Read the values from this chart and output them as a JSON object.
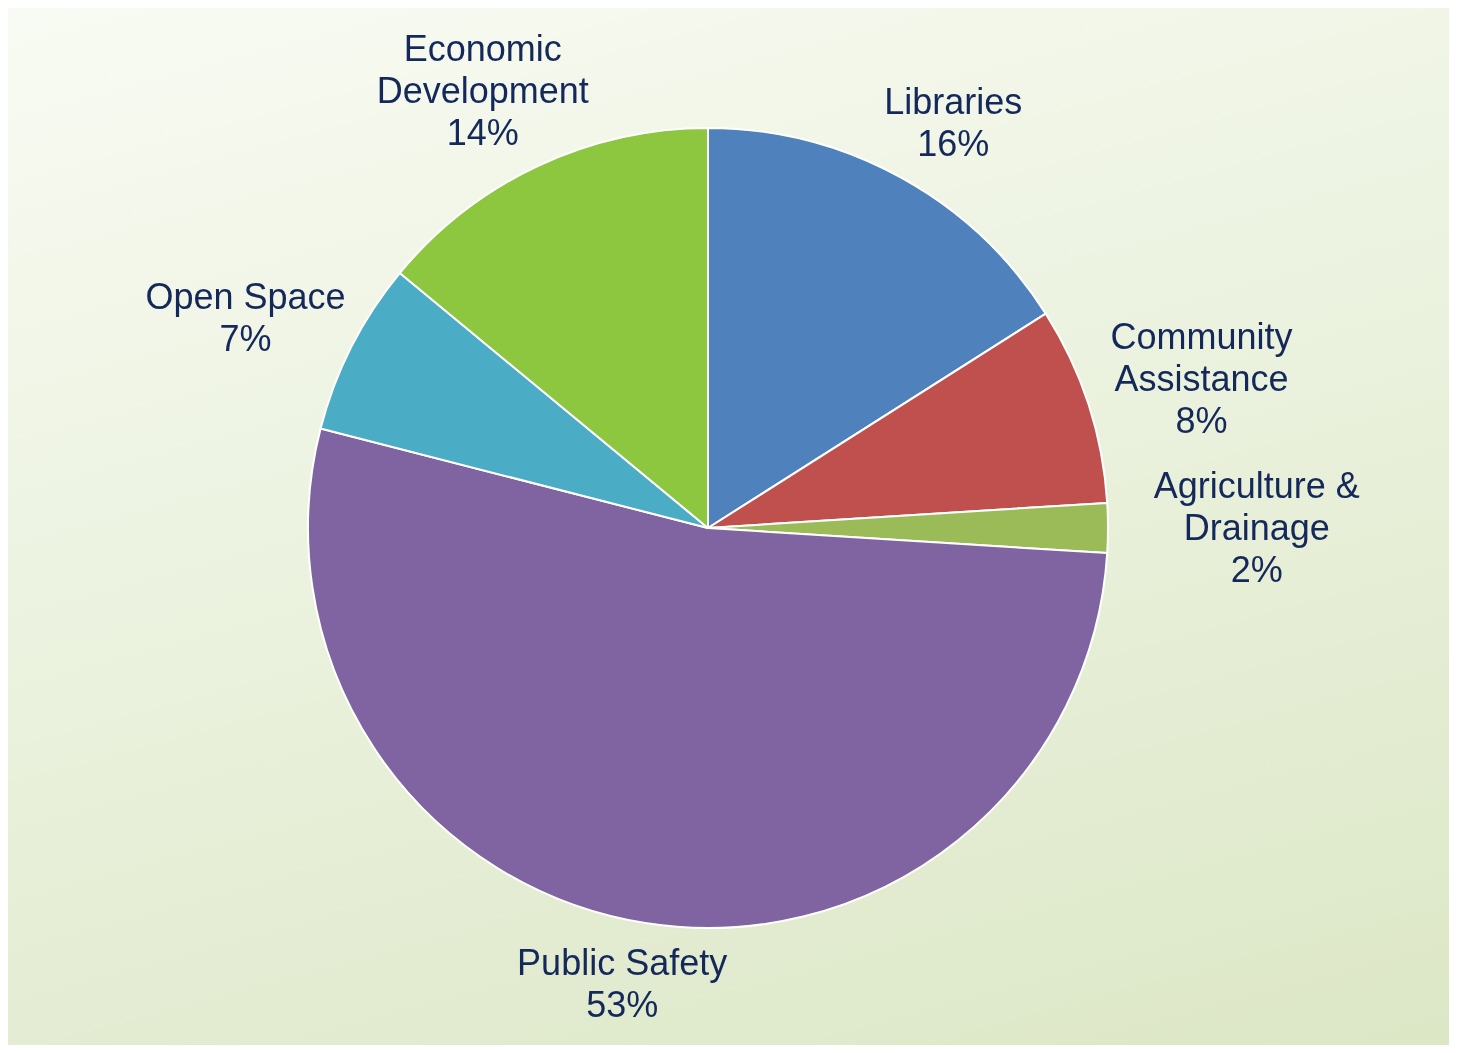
{
  "chart_data": {
    "type": "pie",
    "categories": [
      "Libraries",
      "Community Assistance",
      "Agriculture & Drainage",
      "Public Safety",
      "Open Space",
      "Economic Development"
    ],
    "values": [
      16,
      8,
      2,
      53,
      7,
      14
    ],
    "value_labels": [
      "16%",
      "8%",
      "2%",
      "53%",
      "7%",
      "14%"
    ],
    "colors": [
      "#4f81bd",
      "#c0504d",
      "#9bbb59",
      "#8064a2",
      "#4bacc6",
      "#8dc63f"
    ]
  }
}
